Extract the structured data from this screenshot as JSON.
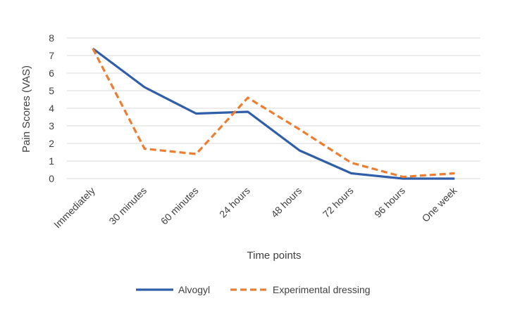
{
  "chart_data": {
    "type": "line",
    "title": "",
    "xlabel": "Time points",
    "ylabel": "Pain Scores (VAS)",
    "ylim": [
      0,
      8
    ],
    "yticks": [
      "0",
      "1",
      "2",
      "3",
      "4",
      "5",
      "6",
      "7",
      "8"
    ],
    "grid": true,
    "legend_position": "bottom",
    "categories": [
      "Immediately",
      "30 minutes",
      "60 minutes",
      "24 hours",
      "48 hours",
      "72 hours",
      "96 hours",
      "One week"
    ],
    "series": [
      {
        "name": "Alvogyl",
        "color": "#2e5fa8",
        "dash": "solid",
        "values": [
          7.4,
          5.2,
          3.7,
          3.8,
          1.6,
          0.3,
          0.0,
          0.0
        ]
      },
      {
        "name": "Experimental dressing",
        "color": "#ed7d31",
        "dash": "dashed",
        "values": [
          7.4,
          1.7,
          1.4,
          4.6,
          2.8,
          0.9,
          0.1,
          0.3
        ]
      }
    ]
  }
}
